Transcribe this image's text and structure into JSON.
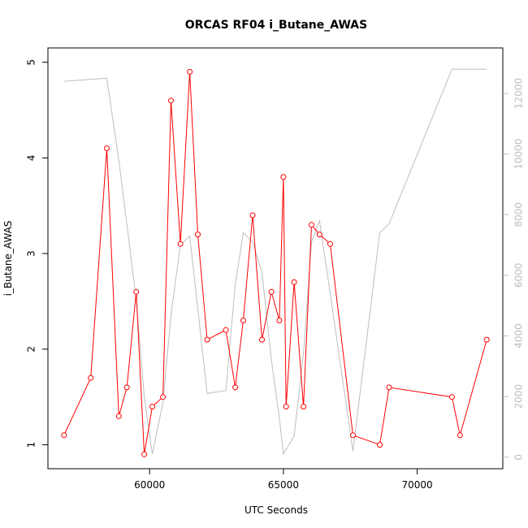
{
  "chart_data": {
    "type": "line",
    "title": "ORCAS RF04 i_Butane_AWAS",
    "xlabel": "UTC Seconds",
    "ylabel": "i_Butane_AWAS",
    "xlim": [
      56200,
      73200
    ],
    "ylim": [
      0.75,
      5.15
    ],
    "y2lim": [
      -380,
      13500
    ],
    "x_ticks": [
      60000,
      65000,
      70000
    ],
    "y_ticks": [
      1,
      2,
      3,
      4,
      5
    ],
    "y2_ticks": [
      0,
      2000,
      4000,
      6000,
      8000,
      10000,
      12000
    ],
    "grid": false,
    "series": [
      {
        "axis": "left",
        "color": "#ff0000",
        "marker": "open-circle",
        "x": [
          56800,
          57800,
          58400,
          58850,
          59150,
          59500,
          59800,
          60100,
          60500,
          60800,
          61150,
          61500,
          61800,
          62150,
          62850,
          63200,
          63500,
          63850,
          64200,
          64550,
          64850,
          65000,
          65100,
          65400,
          65750,
          66050,
          66350,
          66750,
          67600,
          68600,
          68950,
          71300,
          71600,
          72600
        ],
        "values": [
          1.1,
          1.7,
          4.1,
          1.3,
          1.6,
          2.6,
          0.9,
          1.4,
          1.5,
          4.6,
          3.1,
          4.9,
          3.2,
          2.1,
          2.2,
          1.6,
          2.3,
          3.4,
          2.1,
          2.6,
          2.3,
          3.8,
          1.4,
          2.7,
          1.4,
          3.3,
          3.2,
          3.1,
          1.1,
          1.0,
          1.6,
          1.5,
          1.1,
          2.1
        ]
      },
      {
        "axis": "right",
        "color": "#bebebe",
        "marker": "none",
        "x": [
          56800,
          58400,
          58850,
          59500,
          59800,
          60100,
          60500,
          60800,
          61150,
          61500,
          62150,
          62850,
          63200,
          63500,
          63850,
          64200,
          64550,
          64850,
          65000,
          65400,
          65750,
          66050,
          66350,
          66750,
          67600,
          68600,
          68950,
          71300,
          72600
        ],
        "values": [
          12400,
          12500,
          9800,
          5200,
          2000,
          100,
          1800,
          4700,
          7000,
          7300,
          2100,
          2200,
          5700,
          7400,
          7100,
          6100,
          3200,
          1300,
          100,
          700,
          3400,
          7100,
          7800,
          5400,
          200,
          7400,
          7700,
          12800,
          12800
        ]
      }
    ]
  }
}
